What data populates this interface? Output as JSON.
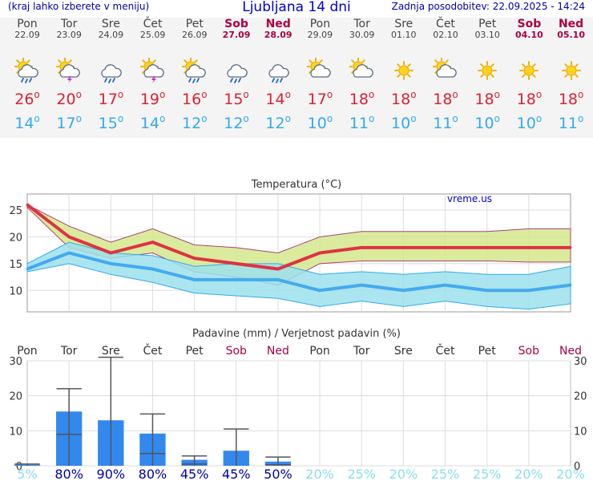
{
  "header": {
    "left_text": "(kraj lahko izberete v meniju)",
    "title": "Ljubljana 14 dni",
    "updated": "Zadnja posodobitev: 22.09.2025 - 14:24"
  },
  "days": [
    {
      "name": "Pon",
      "date": "22.09",
      "icon": "sun-cloud-rain-icon",
      "tmax": "26",
      "tmin": "14",
      "weekend": false
    },
    {
      "name": "Tor",
      "date": "23.09",
      "icon": "sun-cloud-storm-icon",
      "tmax": "20",
      "tmin": "17",
      "weekend": false
    },
    {
      "name": "Sre",
      "date": "24.09",
      "icon": "cloud-rain-icon",
      "tmax": "17",
      "tmin": "15",
      "weekend": false
    },
    {
      "name": "Čet",
      "date": "25.09",
      "icon": "sun-cloud-storm-icon",
      "tmax": "19",
      "tmin": "14",
      "weekend": false
    },
    {
      "name": "Pet",
      "date": "26.09",
      "icon": "sun-cloud-rain-icon",
      "tmax": "16",
      "tmin": "12",
      "weekend": false
    },
    {
      "name": "Sob",
      "date": "27.09",
      "icon": "cloud-rain-icon",
      "tmax": "15",
      "tmin": "12",
      "weekend": true
    },
    {
      "name": "Ned",
      "date": "28.09",
      "icon": "cloud-rain-icon",
      "tmax": "14",
      "tmin": "12",
      "weekend": true
    },
    {
      "name": "Pon",
      "date": "29.09",
      "icon": "sun-cloud-icon",
      "tmax": "17",
      "tmin": "10",
      "weekend": false
    },
    {
      "name": "Tor",
      "date": "30.09",
      "icon": "sun-cloud-icon",
      "tmax": "18",
      "tmin": "11",
      "weekend": false
    },
    {
      "name": "Sre",
      "date": "01.10",
      "icon": "sun-icon",
      "tmax": "18",
      "tmin": "10",
      "weekend": false
    },
    {
      "name": "Čet",
      "date": "02.10",
      "icon": "sun-cloud-icon",
      "tmax": "18",
      "tmin": "11",
      "weekend": false
    },
    {
      "name": "Pet",
      "date": "03.10",
      "icon": "sun-icon",
      "tmax": "18",
      "tmin": "10",
      "weekend": false
    },
    {
      "name": "Sob",
      "date": "04.10",
      "icon": "sun-icon",
      "tmax": "18",
      "tmin": "10",
      "weekend": true
    },
    {
      "name": "Ned",
      "date": "05.10",
      "icon": "sun-icon",
      "tmax": "18",
      "tmin": "11",
      "weekend": true
    }
  ],
  "colors": {
    "tmax": "#dd3344",
    "tmin": "#44aaee",
    "warm_band": "#d4e88c",
    "cold_band": "#9ce0ec",
    "overlap": "#88d8a8",
    "bar": "#3388ee",
    "weekend": "#aa0044",
    "prob_high": "#0000aa",
    "prob_low": "#88ddee"
  },
  "chart_data": [
    {
      "type": "line",
      "title": "Temperatura (°C)",
      "watermark": "vreme.us",
      "ylim": [
        6,
        28
      ],
      "yticks": [
        10,
        15,
        20,
        25
      ],
      "series": [
        {
          "name": "",
          "values": [
            26,
            20,
            17,
            19,
            16,
            15,
            14,
            17,
            18,
            18,
            18,
            18,
            18,
            18
          ]
        },
        {
          "name": "",
          "values": [
            26,
            22,
            19,
            21.5,
            18.5,
            18,
            17,
            20,
            21,
            21,
            21,
            21,
            21.5,
            21.5
          ]
        },
        {
          "name": "",
          "values": [
            25.5,
            18,
            16,
            17,
            13.5,
            12.5,
            11,
            15,
            15.5,
            15.5,
            15.5,
            15.5,
            15.3,
            15.3
          ]
        },
        {
          "name": "",
          "values": [
            14,
            17,
            15,
            14,
            12,
            12,
            12,
            10,
            11,
            10,
            11,
            10,
            10,
            11
          ]
        },
        {
          "name": "",
          "values": [
            15,
            19,
            17,
            16.5,
            14.5,
            15,
            15,
            13,
            13.5,
            13,
            13.5,
            13,
            13,
            14.5
          ]
        },
        {
          "name": "",
          "values": [
            13.5,
            15,
            13,
            11.5,
            9.5,
            9,
            8.5,
            7,
            8,
            7,
            8,
            7,
            6.5,
            7.5
          ]
        }
      ]
    },
    {
      "type": "bar",
      "title": "Padavine (mm) / Verjetnost padavin (%)",
      "categories": [
        "Pon",
        "Tor",
        "Sre",
        "Čet",
        "Pet",
        "Sob",
        "Ned",
        "Pon",
        "Tor",
        "Sre",
        "Čet",
        "Pet",
        "Sob",
        "Ned"
      ],
      "weekend": [
        false,
        false,
        false,
        false,
        false,
        true,
        true,
        false,
        false,
        false,
        false,
        false,
        true,
        true
      ],
      "ylim": [
        0,
        30
      ],
      "yticks": [
        0,
        10,
        20,
        30
      ],
      "values": [
        0.3,
        15.5,
        13,
        9.2,
        1.7,
        4.3,
        1.2,
        0,
        0,
        0,
        0,
        0,
        0,
        0
      ],
      "err_low": [
        0,
        9,
        0,
        3.5,
        0.5,
        0,
        0.3,
        0,
        0,
        0,
        0,
        0,
        0,
        0
      ],
      "err_high": [
        0.5,
        22,
        31,
        14.8,
        2.8,
        10.5,
        2.5,
        0,
        0,
        0,
        0,
        0,
        0,
        0
      ],
      "probability": [
        "5%",
        "80%",
        "90%",
        "80%",
        "45%",
        "45%",
        "50%",
        "20%",
        "25%",
        "20%",
        "25%",
        "25%",
        "20%",
        "20%"
      ]
    }
  ]
}
